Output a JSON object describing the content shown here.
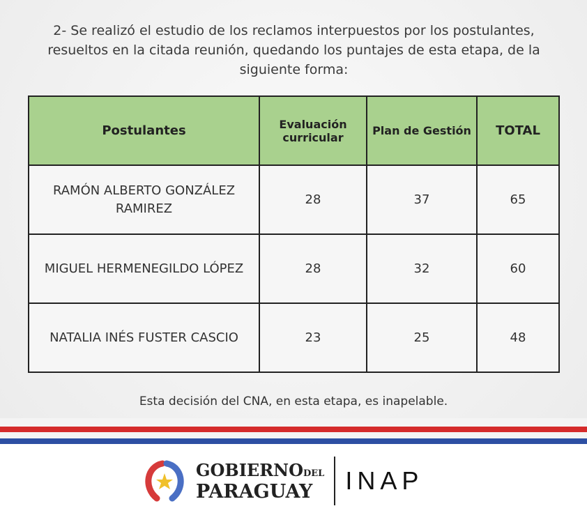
{
  "intro": "2- Se realizó el estudio de los reclamos interpuestos por los postulantes, resueltos en la citada reunión, quedando los puntajes de esta etapa, de la siguiente forma:",
  "table": {
    "headers": [
      "Postulantes",
      "Evaluación curricular",
      "Plan de Gestión",
      "TOTAL"
    ],
    "rows": [
      [
        "RAMÓN ALBERTO GONZÁLEZ RAMIREZ",
        "28",
        "37",
        "65"
      ],
      [
        "MIGUEL HERMENEGILDO LÓPEZ",
        "28",
        "32",
        "60"
      ],
      [
        "NATALIA INÉS FUSTER CASCIO",
        "23",
        "25",
        "48"
      ]
    ]
  },
  "note": "Esta decisión del CNA, en esta etapa, es inapelable.",
  "footer": {
    "gov_line1": "GOBIERNO",
    "gov_del": "DEL",
    "gov_line2": "PARAGUAY",
    "inap": "INAP"
  },
  "colors": {
    "header_bg": "#a9d18e",
    "flag_red": "#d52b2b",
    "flag_blue": "#2d4fa3"
  }
}
